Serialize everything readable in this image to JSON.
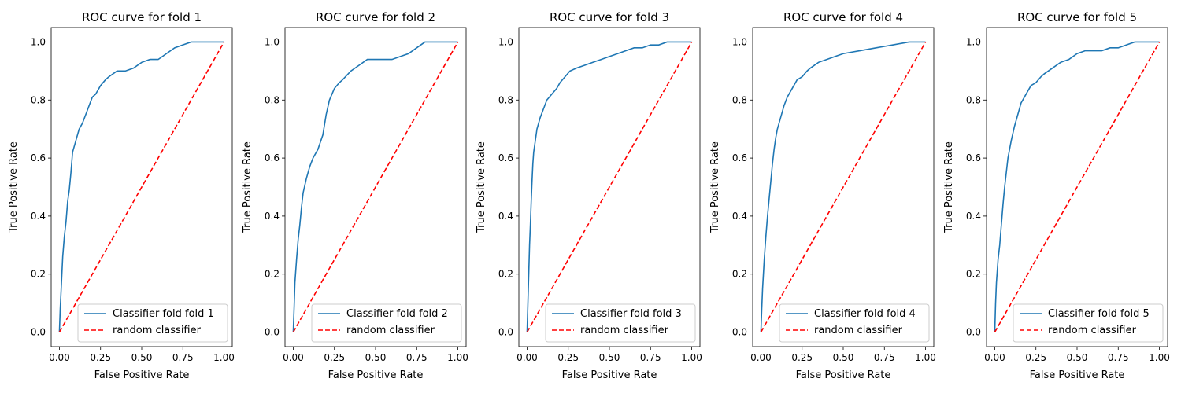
{
  "colors": {
    "roc": "#1f77b4",
    "random": "#ff0000",
    "axis": "#000000",
    "legend_border": "#cccccc"
  },
  "chart_data": [
    {
      "type": "line",
      "title": "ROC curve for fold 1",
      "xlabel": "False Positive Rate",
      "ylabel": "True Positive Rate",
      "xlim": [
        -0.05,
        1.05
      ],
      "ylim": [
        -0.05,
        1.05
      ],
      "xticks": [
        "0.00",
        "0.25",
        "0.50",
        "0.75",
        "1.00"
      ],
      "yticks": [
        "0.0",
        "0.2",
        "0.4",
        "0.6",
        "0.8",
        "1.0"
      ],
      "grid": false,
      "legend_position": "bottom-right",
      "series": [
        {
          "name": "Classifier fold fold 1",
          "style": "solid",
          "x": [
            0,
            0.005,
            0.01,
            0.015,
            0.02,
            0.03,
            0.04,
            0.05,
            0.06,
            0.07,
            0.08,
            0.09,
            0.1,
            0.12,
            0.14,
            0.16,
            0.18,
            0.2,
            0.22,
            0.25,
            0.28,
            0.3,
            0.35,
            0.4,
            0.45,
            0.5,
            0.55,
            0.6,
            0.65,
            0.7,
            0.75,
            0.8,
            0.85,
            0.9,
            0.95,
            1.0
          ],
          "y": [
            0,
            0.08,
            0.14,
            0.2,
            0.26,
            0.33,
            0.38,
            0.45,
            0.49,
            0.55,
            0.62,
            0.64,
            0.66,
            0.7,
            0.72,
            0.75,
            0.78,
            0.81,
            0.82,
            0.85,
            0.87,
            0.88,
            0.9,
            0.9,
            0.91,
            0.93,
            0.94,
            0.94,
            0.96,
            0.98,
            0.99,
            1.0,
            1.0,
            1.0,
            1.0,
            1.0
          ]
        },
        {
          "name": "random classifier",
          "style": "dashed",
          "x": [
            0,
            1
          ],
          "y": [
            0,
            1
          ]
        }
      ]
    },
    {
      "type": "line",
      "title": "ROC curve for fold 2",
      "xlabel": "False Positive Rate",
      "ylabel": "True Positive Rate",
      "xlim": [
        -0.05,
        1.05
      ],
      "ylim": [
        -0.05,
        1.05
      ],
      "xticks": [
        "0.00",
        "0.25",
        "0.50",
        "0.75",
        "1.00"
      ],
      "yticks": [
        "0.0",
        "0.2",
        "0.4",
        "0.6",
        "0.8",
        "1.0"
      ],
      "grid": false,
      "legend_position": "bottom-right",
      "series": [
        {
          "name": "Classifier fold fold 2",
          "style": "solid",
          "x": [
            0,
            0.005,
            0.01,
            0.02,
            0.03,
            0.04,
            0.05,
            0.06,
            0.08,
            0.1,
            0.12,
            0.15,
            0.18,
            0.2,
            0.22,
            0.25,
            0.28,
            0.3,
            0.35,
            0.4,
            0.45,
            0.5,
            0.55,
            0.6,
            0.65,
            0.7,
            0.75,
            0.8,
            0.85,
            0.9,
            0.95,
            1.0
          ],
          "y": [
            0,
            0.08,
            0.17,
            0.25,
            0.32,
            0.37,
            0.43,
            0.48,
            0.53,
            0.57,
            0.6,
            0.63,
            0.68,
            0.75,
            0.8,
            0.84,
            0.86,
            0.87,
            0.9,
            0.92,
            0.94,
            0.94,
            0.94,
            0.94,
            0.95,
            0.96,
            0.98,
            1.0,
            1.0,
            1.0,
            1.0,
            1.0
          ]
        },
        {
          "name": "random classifier",
          "style": "dashed",
          "x": [
            0,
            1
          ],
          "y": [
            0,
            1
          ]
        }
      ]
    },
    {
      "type": "line",
      "title": "ROC curve for fold 3",
      "xlabel": "False Positive Rate",
      "ylabel": "True Positive Rate",
      "xlim": [
        -0.05,
        1.05
      ],
      "ylim": [
        -0.05,
        1.05
      ],
      "xticks": [
        "0.00",
        "0.25",
        "0.50",
        "0.75",
        "1.00"
      ],
      "yticks": [
        "0.0",
        "0.2",
        "0.4",
        "0.6",
        "0.8",
        "1.0"
      ],
      "grid": false,
      "legend_position": "bottom-right",
      "series": [
        {
          "name": "Classifier fold fold 3",
          "style": "solid",
          "x": [
            0,
            0.005,
            0.01,
            0.015,
            0.02,
            0.025,
            0.03,
            0.035,
            0.04,
            0.05,
            0.06,
            0.07,
            0.08,
            0.1,
            0.12,
            0.15,
            0.18,
            0.2,
            0.23,
            0.26,
            0.3,
            0.35,
            0.4,
            0.45,
            0.5,
            0.55,
            0.6,
            0.65,
            0.7,
            0.75,
            0.8,
            0.85,
            0.9,
            0.95,
            1.0
          ],
          "y": [
            0,
            0.1,
            0.2,
            0.3,
            0.37,
            0.45,
            0.52,
            0.58,
            0.62,
            0.66,
            0.7,
            0.72,
            0.74,
            0.77,
            0.8,
            0.82,
            0.84,
            0.86,
            0.88,
            0.9,
            0.91,
            0.92,
            0.93,
            0.94,
            0.95,
            0.96,
            0.97,
            0.98,
            0.98,
            0.99,
            0.99,
            1.0,
            1.0,
            1.0,
            1.0
          ]
        },
        {
          "name": "random classifier",
          "style": "dashed",
          "x": [
            0,
            1
          ],
          "y": [
            0,
            1
          ]
        }
      ]
    },
    {
      "type": "line",
      "title": "ROC curve for fold 4",
      "xlabel": "False Positive Rate",
      "ylabel": "True Positive Rate",
      "xlim": [
        -0.05,
        1.05
      ],
      "ylim": [
        -0.05,
        1.05
      ],
      "xticks": [
        "0.00",
        "0.25",
        "0.50",
        "0.75",
        "1.00"
      ],
      "yticks": [
        "0.0",
        "0.2",
        "0.4",
        "0.6",
        "0.8",
        "1.0"
      ],
      "grid": false,
      "legend_position": "bottom-right",
      "series": [
        {
          "name": "Classifier fold fold 4",
          "style": "solid",
          "x": [
            0,
            0.005,
            0.01,
            0.02,
            0.03,
            0.04,
            0.05,
            0.06,
            0.07,
            0.08,
            0.09,
            0.1,
            0.12,
            0.14,
            0.16,
            0.18,
            0.2,
            0.22,
            0.25,
            0.28,
            0.3,
            0.35,
            0.4,
            0.45,
            0.5,
            0.55,
            0.6,
            0.65,
            0.7,
            0.75,
            0.8,
            0.85,
            0.9,
            0.95,
            1.0
          ],
          "y": [
            0,
            0.08,
            0.15,
            0.25,
            0.33,
            0.4,
            0.46,
            0.52,
            0.58,
            0.63,
            0.67,
            0.7,
            0.74,
            0.78,
            0.81,
            0.83,
            0.85,
            0.87,
            0.88,
            0.9,
            0.91,
            0.93,
            0.94,
            0.95,
            0.96,
            0.965,
            0.97,
            0.975,
            0.98,
            0.985,
            0.99,
            0.995,
            1.0,
            1.0,
            1.0
          ]
        },
        {
          "name": "random classifier",
          "style": "dashed",
          "x": [
            0,
            1
          ],
          "y": [
            0,
            1
          ]
        }
      ]
    },
    {
      "type": "line",
      "title": "ROC curve for fold 5",
      "xlabel": "False Positive Rate",
      "ylabel": "True Positive Rate",
      "xlim": [
        -0.05,
        1.05
      ],
      "ylim": [
        -0.05,
        1.05
      ],
      "xticks": [
        "0.00",
        "0.25",
        "0.50",
        "0.75",
        "1.00"
      ],
      "yticks": [
        "0.0",
        "0.2",
        "0.4",
        "0.6",
        "0.8",
        "1.0"
      ],
      "grid": false,
      "legend_position": "bottom-right",
      "series": [
        {
          "name": "Classifier fold fold 5",
          "style": "solid",
          "x": [
            0,
            0.005,
            0.01,
            0.02,
            0.03,
            0.04,
            0.05,
            0.06,
            0.07,
            0.08,
            0.09,
            0.1,
            0.12,
            0.14,
            0.16,
            0.18,
            0.2,
            0.22,
            0.25,
            0.28,
            0.3,
            0.35,
            0.4,
            0.45,
            0.5,
            0.55,
            0.6,
            0.65,
            0.7,
            0.75,
            0.8,
            0.85,
            0.9,
            0.95,
            1.0
          ],
          "y": [
            0,
            0.1,
            0.17,
            0.25,
            0.3,
            0.37,
            0.44,
            0.5,
            0.55,
            0.6,
            0.63,
            0.66,
            0.71,
            0.75,
            0.79,
            0.81,
            0.83,
            0.85,
            0.86,
            0.88,
            0.89,
            0.91,
            0.93,
            0.94,
            0.96,
            0.97,
            0.97,
            0.97,
            0.98,
            0.98,
            0.99,
            1.0,
            1.0,
            1.0,
            1.0
          ]
        },
        {
          "name": "random classifier",
          "style": "dashed",
          "x": [
            0,
            1
          ],
          "y": [
            0,
            1
          ]
        }
      ]
    }
  ]
}
